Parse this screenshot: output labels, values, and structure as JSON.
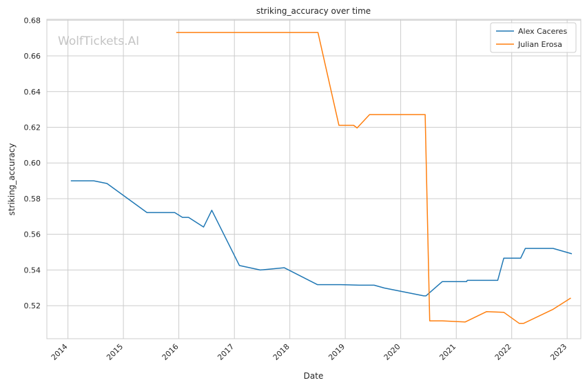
{
  "watermark": "WolfTickets.AI",
  "chart_data": {
    "type": "line",
    "title": "striking_accuracy over time",
    "xlabel": "Date",
    "ylabel": "striking_accuracy",
    "xlim": [
      "2013-08-15",
      "2023-04-01"
    ],
    "ylim": [
      0.5015,
      0.6805
    ],
    "x_ticks": [
      "2014",
      "2015",
      "2016",
      "2017",
      "2018",
      "2019",
      "2020",
      "2021",
      "2022",
      "2023"
    ],
    "y_ticks": [
      "0.52",
      "0.54",
      "0.56",
      "0.58",
      "0.60",
      "0.62",
      "0.64",
      "0.66",
      "0.68"
    ],
    "grid": true,
    "legend_position": "top-right",
    "series": [
      {
        "name": "Alex Caceres",
        "color": "#1f77b4",
        "points": [
          [
            "2014-01-20",
            0.59
          ],
          [
            "2014-06-20",
            0.59
          ],
          [
            "2014-09-15",
            0.5885
          ],
          [
            "2015-06-05",
            0.5722
          ],
          [
            "2015-12-05",
            0.5722
          ],
          [
            "2016-01-25",
            0.5695
          ],
          [
            "2016-03-05",
            0.5695
          ],
          [
            "2016-06-12",
            0.5641
          ],
          [
            "2016-08-05",
            0.5735
          ],
          [
            "2017-02-03",
            0.5425
          ],
          [
            "2017-06-20",
            0.54
          ],
          [
            "2017-11-25",
            0.5413
          ],
          [
            "2018-07-01",
            0.5318
          ],
          [
            "2018-12-01",
            0.5318
          ],
          [
            "2019-04-01",
            0.5315
          ],
          [
            "2019-07-10",
            0.5315
          ],
          [
            "2019-09-15",
            0.5299
          ],
          [
            "2020-06-01",
            0.5255
          ],
          [
            "2020-06-15",
            0.5255
          ],
          [
            "2020-10-01",
            0.5335
          ],
          [
            "2021-03-10",
            0.5335
          ],
          [
            "2021-03-15",
            0.5342
          ],
          [
            "2021-10-01",
            0.5342
          ],
          [
            "2021-11-10",
            0.5466
          ],
          [
            "2022-03-01",
            0.5466
          ],
          [
            "2022-04-01",
            0.5521
          ],
          [
            "2022-10-01",
            0.5521
          ],
          [
            "2023-02-01",
            0.5491
          ]
        ]
      },
      {
        "name": "Julian Erosa",
        "color": "#ff7f0e",
        "points": [
          [
            "2015-12-15",
            0.6731
          ],
          [
            "2018-07-05",
            0.6731
          ],
          [
            "2018-11-20",
            0.6211
          ],
          [
            "2019-02-25",
            0.6211
          ],
          [
            "2019-03-20",
            0.6196
          ],
          [
            "2019-06-10",
            0.6271
          ],
          [
            "2020-06-10",
            0.6271
          ],
          [
            "2020-07-10",
            0.5115
          ],
          [
            "2020-10-01",
            0.5115
          ],
          [
            "2021-03-01",
            0.5109
          ],
          [
            "2021-07-20",
            0.5167
          ],
          [
            "2021-11-10",
            0.5163
          ],
          [
            "2022-02-20",
            0.5101
          ],
          [
            "2022-03-20",
            0.5101
          ],
          [
            "2022-10-01",
            0.518
          ],
          [
            "2023-01-25",
            0.5243
          ]
        ]
      }
    ]
  }
}
